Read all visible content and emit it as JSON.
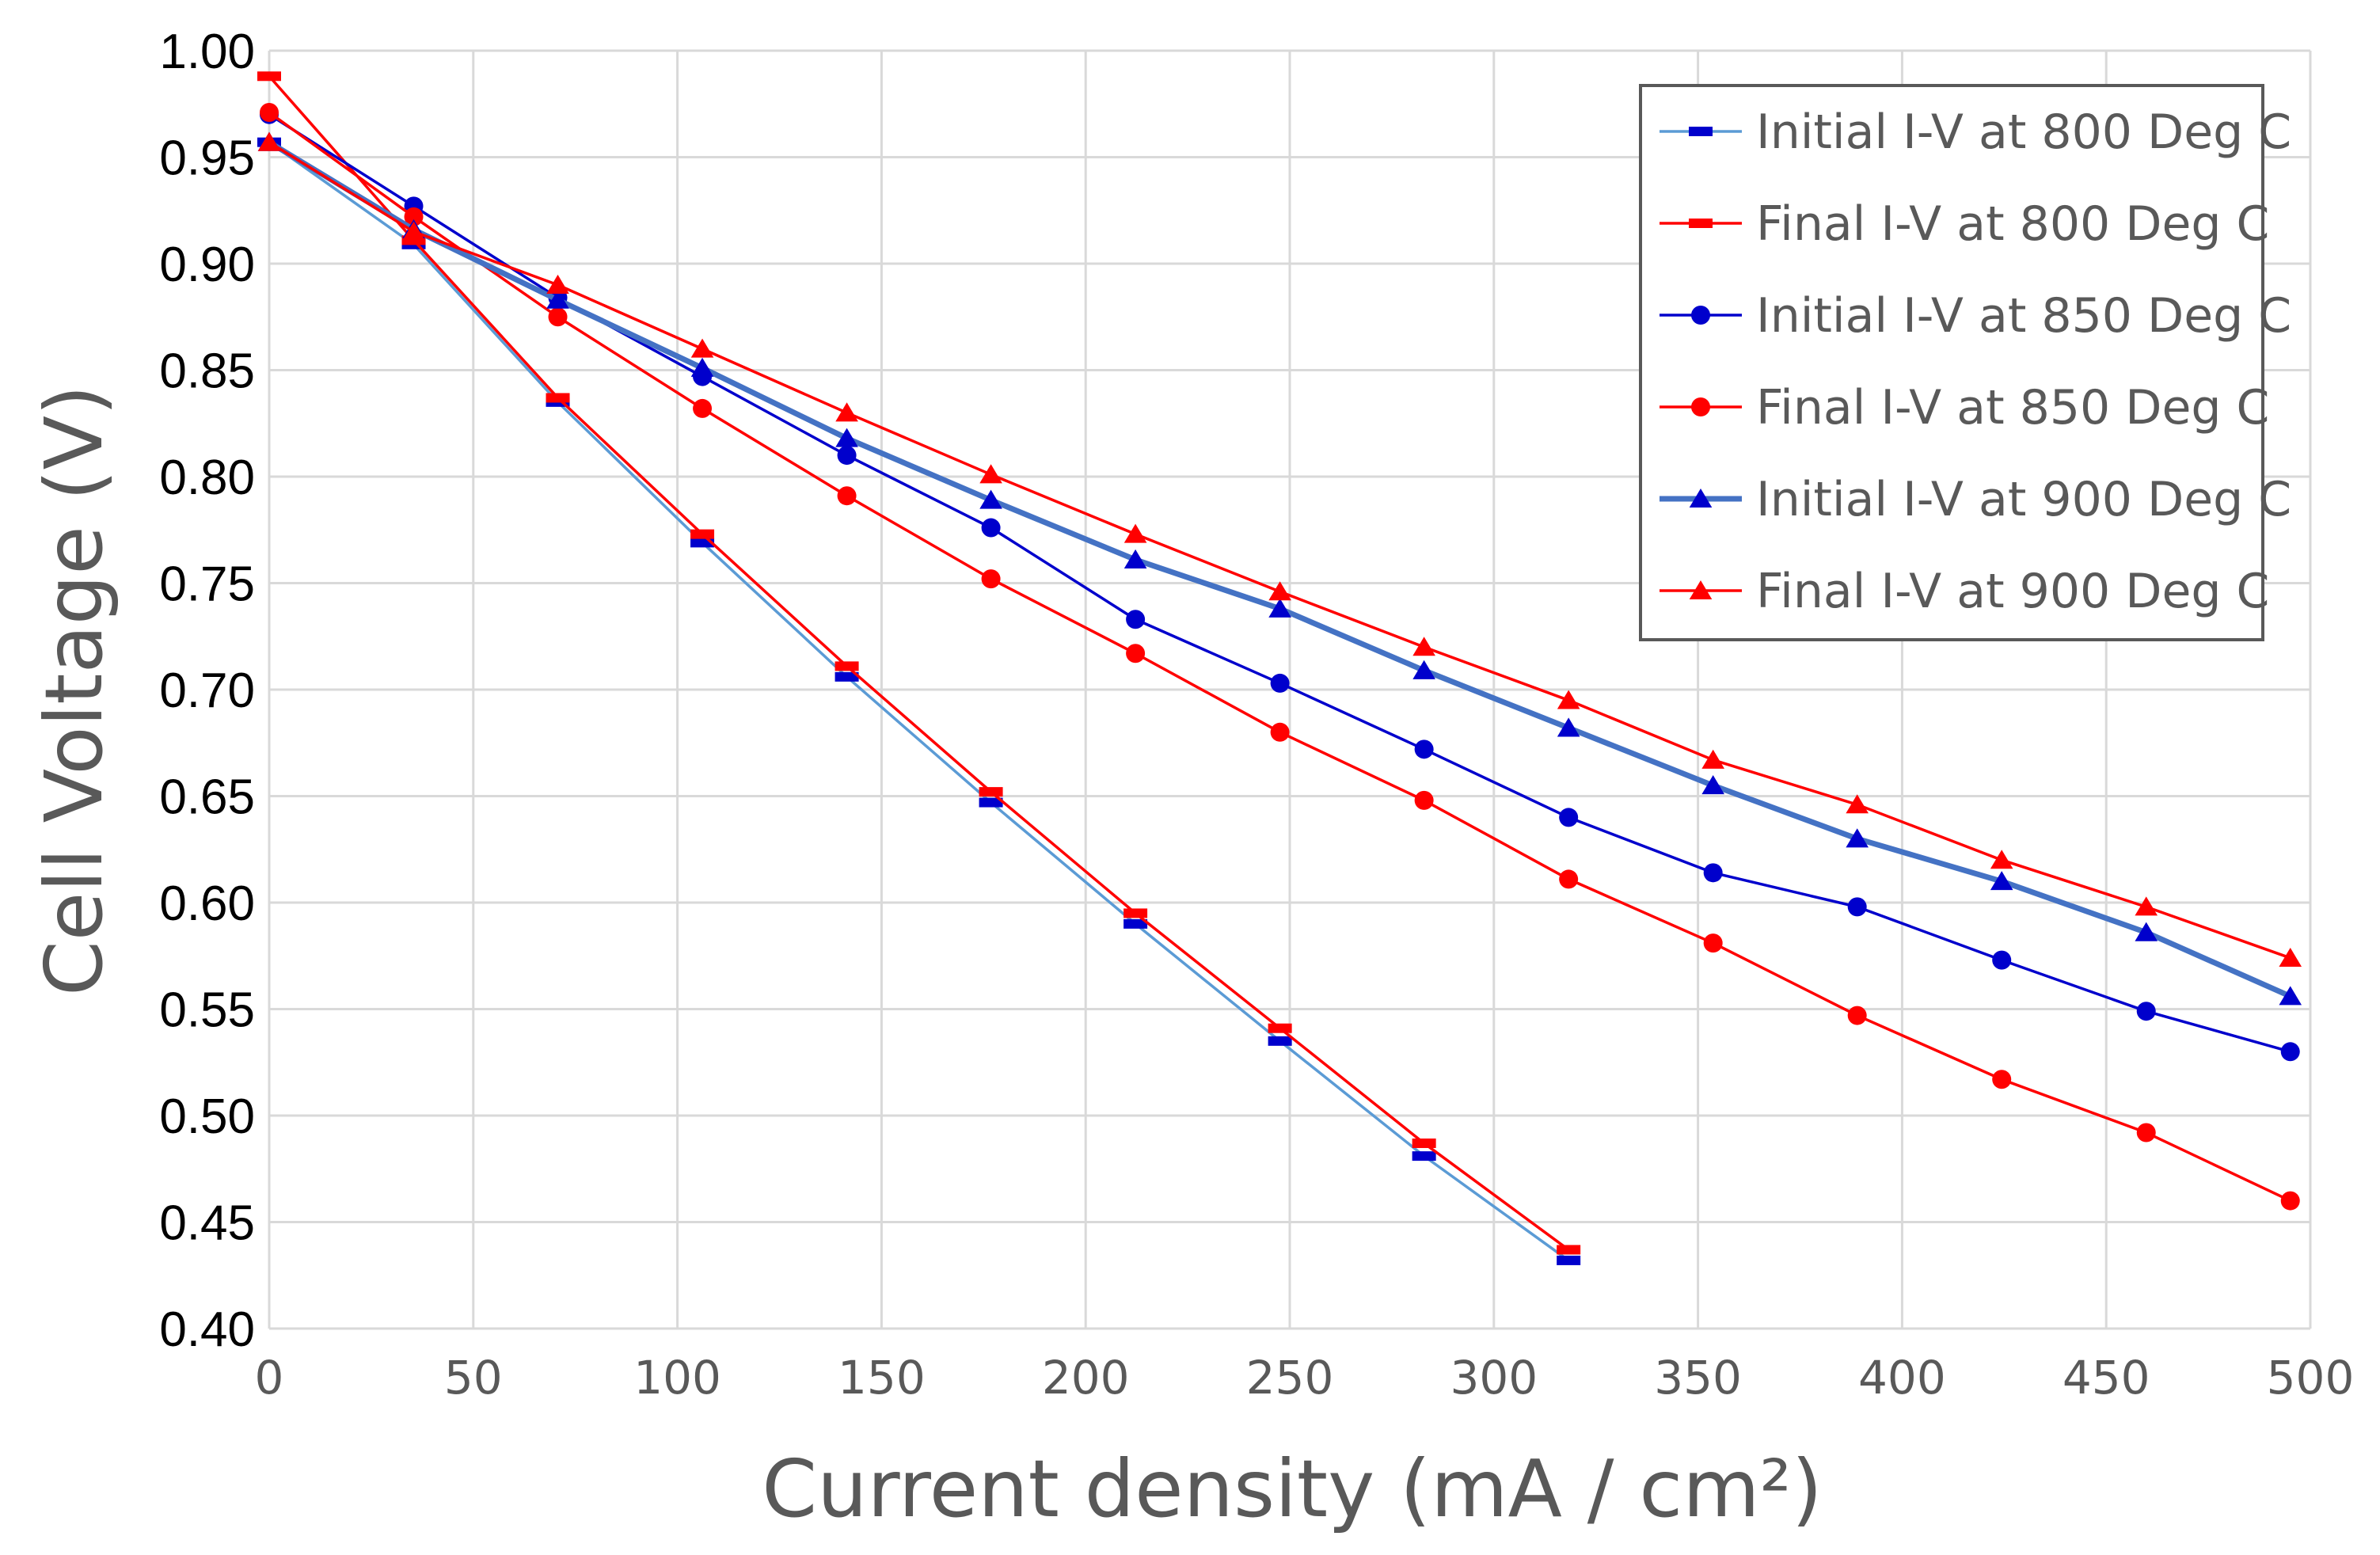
{
  "chart_data": {
    "type": "line",
    "title": "",
    "xlabel": "Current density (mA / cm²)",
    "ylabel": "Cell Voltage (V)",
    "xlim": [
      0,
      500
    ],
    "ylim": [
      0.4,
      1.0
    ],
    "x_ticks": [
      0,
      50,
      100,
      150,
      200,
      250,
      300,
      350,
      400,
      450,
      500
    ],
    "x_tick_labels": [
      "0",
      "50",
      "100",
      "150",
      "200",
      "250",
      "300",
      "350",
      "400",
      "450",
      "500"
    ],
    "y_ticks": [
      0.4,
      0.45,
      0.5,
      0.55,
      0.6,
      0.65,
      0.7,
      0.75,
      0.8,
      0.85,
      0.9,
      0.95,
      1.0
    ],
    "y_tick_labels": [
      "0.40",
      "0.45",
      "0.50",
      "0.55",
      "0.60",
      "0.65",
      "0.70",
      "0.75",
      "0.80",
      "0.85",
      "0.90",
      "0.95",
      "1.00"
    ],
    "grid": true,
    "legend_position": "top-right",
    "series": [
      {
        "name": "Initial I-V at 800 Deg C",
        "color": "#5b9bd5",
        "marker_color": "#0000cc",
        "marker": "dash",
        "x": [
          0,
          35.4,
          70.7,
          106.1,
          141.5,
          176.8,
          212.2,
          247.6,
          282.9,
          318.3
        ],
        "values": [
          0.957,
          0.909,
          0.835,
          0.769,
          0.706,
          0.647,
          0.59,
          0.535,
          0.481,
          0.432
        ]
      },
      {
        "name": "Final I-V at 800 Deg C",
        "color": "#ff0000",
        "marker_color": "#ff0000",
        "marker": "dash",
        "x": [
          0,
          35.4,
          70.7,
          106.1,
          141.5,
          176.8,
          212.2,
          247.6,
          282.9,
          318.3
        ],
        "values": [
          0.988,
          0.911,
          0.837,
          0.773,
          0.711,
          0.652,
          0.595,
          0.541,
          0.487,
          0.437
        ]
      },
      {
        "name": "Initial I-V at 850 Deg C",
        "color": "#0000cc",
        "marker_color": "#0000cc",
        "marker": "circle",
        "x": [
          0,
          35.4,
          70.7,
          106.1,
          141.5,
          176.8,
          212.2,
          247.6,
          282.9,
          318.3,
          353.7,
          389.0,
          424.4,
          459.8,
          495.1
        ],
        "values": [
          0.97,
          0.927,
          0.884,
          0.847,
          0.81,
          0.776,
          0.733,
          0.703,
          0.672,
          0.64,
          0.614,
          0.598,
          0.573,
          0.549,
          0.53
        ]
      },
      {
        "name": "Final I-V at 850 Deg C",
        "color": "#ff0000",
        "marker_color": "#ff0000",
        "marker": "circle",
        "x": [
          0,
          35.4,
          70.7,
          106.1,
          141.5,
          176.8,
          212.2,
          247.6,
          282.9,
          318.3,
          353.7,
          389.0,
          424.4,
          459.8,
          495.1
        ],
        "values": [
          0.971,
          0.922,
          0.875,
          0.832,
          0.791,
          0.752,
          0.717,
          0.68,
          0.648,
          0.611,
          0.581,
          0.547,
          0.517,
          0.492,
          0.46
        ]
      },
      {
        "name": "Initial I-V at 900 Deg C",
        "color": "#4472c4",
        "marker_color": "#0000cc",
        "marker": "triangle",
        "thick": true,
        "x": [
          0,
          35.4,
          70.7,
          106.1,
          141.5,
          176.8,
          212.2,
          247.6,
          282.9,
          318.3,
          353.7,
          389.0,
          424.4,
          459.8,
          495.1
        ],
        "values": [
          0.957,
          0.916,
          0.883,
          0.851,
          0.818,
          0.789,
          0.761,
          0.738,
          0.709,
          0.682,
          0.655,
          0.63,
          0.61,
          0.586,
          0.556
        ]
      },
      {
        "name": "Final I-V at 900 Deg C",
        "color": "#ff0000",
        "marker_color": "#ff0000",
        "marker": "triangle",
        "x": [
          0,
          35.4,
          70.7,
          106.1,
          141.5,
          176.8,
          212.2,
          247.6,
          282.9,
          318.3,
          353.7,
          389.0,
          424.4,
          459.8,
          495.1
        ],
        "values": [
          0.957,
          0.915,
          0.89,
          0.86,
          0.83,
          0.801,
          0.773,
          0.746,
          0.72,
          0.695,
          0.667,
          0.646,
          0.62,
          0.598,
          0.574
        ]
      }
    ]
  }
}
